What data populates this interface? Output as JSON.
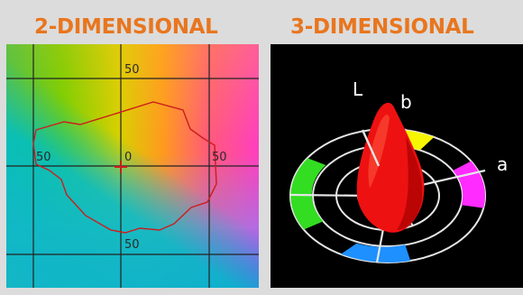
{
  "headings": {
    "two_d": "2-DIMENSIONAL",
    "three_d": "3-DIMENSIONAL"
  },
  "colors": {
    "heading": "#e8761f",
    "grid": "#222222",
    "outline": "#cc1d1d",
    "ring": "#e6e6e6",
    "solid": "#ee1111"
  },
  "plot_2d": {
    "tick_top": "50",
    "tick_left": "50",
    "tick_center": "0",
    "tick_right": "50",
    "tick_bottom": "50"
  },
  "plot_3d": {
    "axis_l": "L",
    "axis_b": "b",
    "axis_a": "a",
    "segments": [
      {
        "name": "yellow-segment",
        "color": "#f6f600"
      },
      {
        "name": "magenta-segment",
        "color": "#ff2bff"
      },
      {
        "name": "blue-segment",
        "color": "#1e90ff"
      },
      {
        "name": "green-segment",
        "color": "#33dd22"
      }
    ]
  }
}
